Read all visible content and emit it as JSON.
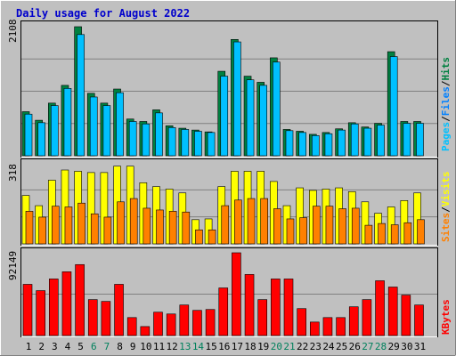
{
  "title": "Daily usage for August 2022",
  "colors": {
    "background": "#C0C0C0",
    "title": "#0000CC",
    "hits": "#008040",
    "files": "#00C0FF",
    "pages": "#00E0FF",
    "visits": "#FFFF00",
    "sites": "#FF8000",
    "kbytes": "#FF0000",
    "weekend_day_label": "#00805C",
    "weekday_day_label": "#000000"
  },
  "chart_data": [
    {
      "type": "bar",
      "panel": "top",
      "ymax_label": "2108",
      "ylim": [
        0,
        2108
      ],
      "legend": [
        "Pages",
        "/",
        "Files",
        "/",
        "Hits"
      ],
      "categories": [
        "1",
        "2",
        "3",
        "4",
        "5",
        "6",
        "7",
        "8",
        "9",
        "10",
        "11",
        "12",
        "13",
        "14",
        "15",
        "16",
        "17",
        "18",
        "19",
        "20",
        "21",
        "22",
        "23",
        "24",
        "25",
        "26",
        "27",
        "28",
        "29",
        "30",
        "31"
      ],
      "weekend": [
        false,
        false,
        false,
        false,
        false,
        true,
        true,
        false,
        false,
        false,
        false,
        false,
        true,
        true,
        false,
        false,
        false,
        false,
        false,
        true,
        true,
        false,
        false,
        false,
        false,
        false,
        true,
        true,
        false,
        false,
        false
      ],
      "series": [
        {
          "name": "Hits",
          "values": [
            720,
            580,
            860,
            1150,
            2108,
            1020,
            860,
            1090,
            600,
            560,
            750,
            490,
            450,
            420,
            390,
            1380,
            1900,
            1300,
            1200,
            1600,
            430,
            400,
            350,
            380,
            440,
            540,
            470,
            530,
            1700,
            560,
            560
          ]
        },
        {
          "name": "Files",
          "values": [
            680,
            540,
            820,
            1100,
            1980,
            960,
            820,
            1030,
            560,
            520,
            700,
            460,
            430,
            400,
            380,
            1300,
            1860,
            1240,
            1150,
            1530,
            410,
            380,
            330,
            360,
            420,
            520,
            450,
            500,
            1620,
            530,
            530
          ]
        },
        {
          "name": "Pages",
          "values": [
            680,
            540,
            820,
            1100,
            1980,
            960,
            820,
            1030,
            560,
            520,
            700,
            460,
            430,
            400,
            380,
            1300,
            1860,
            1240,
            1150,
            1530,
            410,
            380,
            330,
            360,
            420,
            520,
            450,
            500,
            1620,
            530,
            530
          ]
        }
      ]
    },
    {
      "type": "bar",
      "panel": "middle",
      "ymax_label": "318",
      "ylim": [
        0,
        318
      ],
      "legend": [
        "Sites",
        "/",
        "Visits"
      ],
      "categories": [
        "1",
        "2",
        "3",
        "4",
        "5",
        "6",
        "7",
        "8",
        "9",
        "10",
        "11",
        "12",
        "13",
        "14",
        "15",
        "16",
        "17",
        "18",
        "19",
        "20",
        "21",
        "22",
        "23",
        "24",
        "25",
        "26",
        "27",
        "28",
        "29",
        "30",
        "31"
      ],
      "series": [
        {
          "name": "Visits",
          "values": [
            190,
            150,
            250,
            290,
            285,
            280,
            280,
            305,
            305,
            240,
            225,
            215,
            200,
            95,
            98,
            225,
            285,
            285,
            285,
            245,
            150,
            220,
            210,
            215,
            220,
            205,
            165,
            120,
            145,
            170,
            200
          ]
        },
        {
          "name": "Sites",
          "values": [
            128,
            105,
            148,
            145,
            160,
            118,
            105,
            165,
            178,
            140,
            133,
            128,
            125,
            55,
            55,
            150,
            172,
            178,
            178,
            138,
            98,
            103,
            148,
            148,
            138,
            140,
            73,
            80,
            75,
            83,
            95
          ]
        }
      ]
    },
    {
      "type": "bar",
      "panel": "bottom",
      "ymax_label": "92149",
      "ylim": [
        0,
        92149
      ],
      "legend": [
        "KBytes"
      ],
      "categories": [
        "1",
        "2",
        "3",
        "4",
        "5",
        "6",
        "7",
        "8",
        "9",
        "10",
        "11",
        "12",
        "13",
        "14",
        "15",
        "16",
        "17",
        "18",
        "19",
        "20",
        "21",
        "22",
        "23",
        "24",
        "25",
        "26",
        "27",
        "28",
        "29",
        "30",
        "31"
      ],
      "series": [
        {
          "name": "KBytes",
          "values": [
            57000,
            50000,
            63000,
            71000,
            79000,
            40000,
            38000,
            57000,
            20000,
            10000,
            26000,
            24000,
            34000,
            28000,
            29000,
            53000,
            92149,
            68000,
            40000,
            63000,
            63000,
            30000,
            15000,
            20000,
            20000,
            32000,
            40000,
            61000,
            54000,
            45000,
            34000
          ]
        }
      ]
    }
  ]
}
